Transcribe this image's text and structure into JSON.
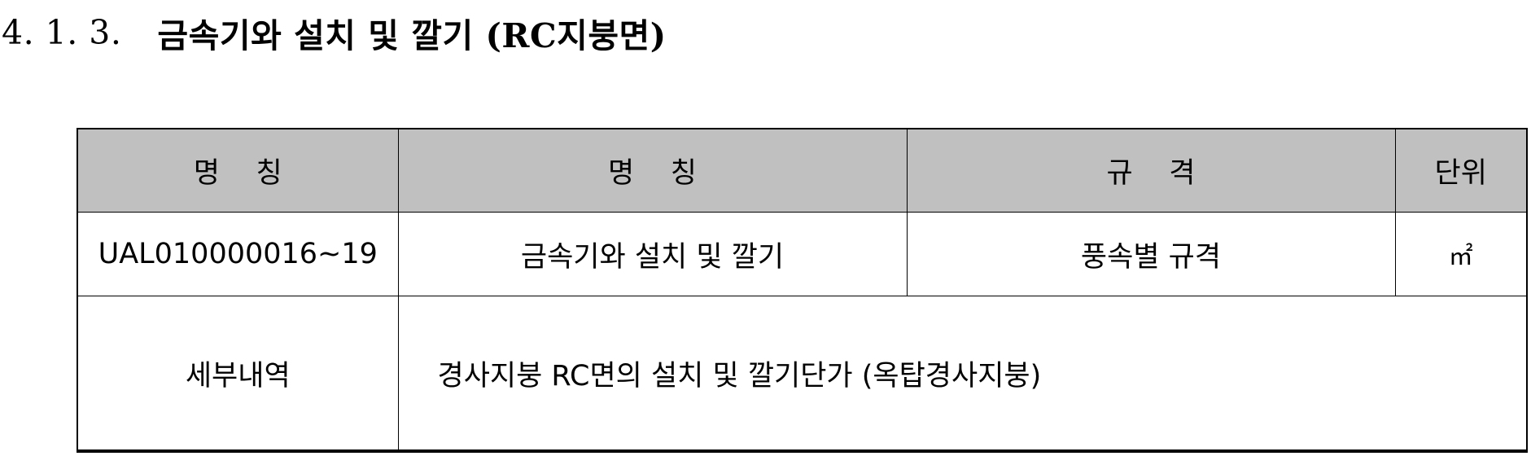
{
  "heading": {
    "number": "4. 1. 3.",
    "title": "금속기와 설치 및 깔기 (RC지붕면)"
  },
  "table": {
    "headers": [
      "명    칭",
      "명    칭",
      "규    격",
      "단위"
    ],
    "row1": {
      "code": "UAL010000016~19",
      "name": "금속기와 설치 및 깔기",
      "spec": "풍속별 규격",
      "unit": "㎡"
    },
    "row2": {
      "label": "세부내역",
      "detail": "경사지붕 RC면의 설치 및 깔기단가 (옥탑경사지붕)"
    }
  }
}
